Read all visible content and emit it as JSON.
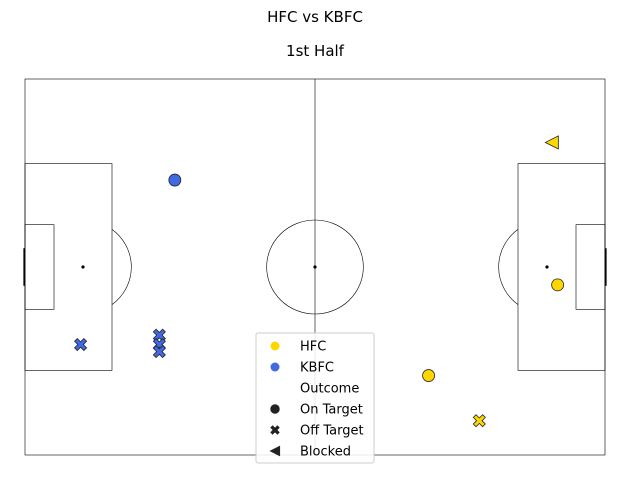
{
  "chart_data": {
    "type": "scatter",
    "title": "HFC vs KBFC",
    "subtitle": "1st Half",
    "pitch": {
      "length": 120,
      "width": 80
    },
    "teams": [
      {
        "name": "HFC",
        "color": "#FFD700"
      },
      {
        "name": "KBFC",
        "color": "#4169E1"
      }
    ],
    "outcome_header": "Outcome",
    "outcomes": [
      {
        "name": "On Target",
        "marker": "circle"
      },
      {
        "name": "Off Target",
        "marker": "x"
      },
      {
        "name": "Blocked",
        "marker": "triangle-left"
      }
    ],
    "shots": [
      {
        "team": "KBFC",
        "outcome": "On Target",
        "x": 31,
        "y": 58.5
      },
      {
        "team": "KBFC",
        "outcome": "Off Target",
        "x": 11.5,
        "y": 23.5
      },
      {
        "team": "KBFC",
        "outcome": "Off Target",
        "x": 27.8,
        "y": 25.5
      },
      {
        "team": "KBFC",
        "outcome": "Off Target",
        "x": 27.8,
        "y": 23.5
      },
      {
        "team": "KBFC",
        "outcome": "Off Target",
        "x": 27.8,
        "y": 22.0
      },
      {
        "team": "HFC",
        "outcome": "Blocked",
        "x": 109,
        "y": 66.5
      },
      {
        "team": "HFC",
        "outcome": "On Target",
        "x": 110.2,
        "y": 36.2
      },
      {
        "team": "HFC",
        "outcome": "On Target",
        "x": 83.5,
        "y": 16.9
      },
      {
        "team": "HFC",
        "outcome": "Off Target",
        "x": 94,
        "y": 7.3
      }
    ]
  }
}
